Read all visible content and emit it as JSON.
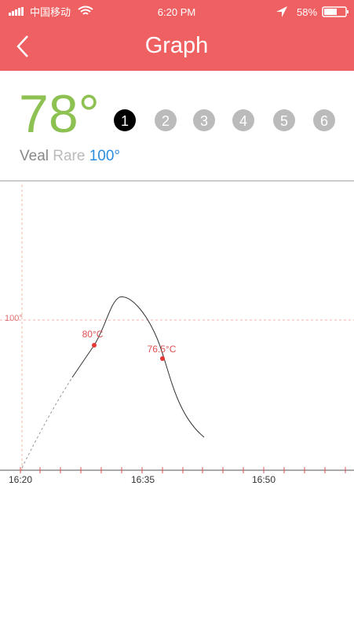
{
  "status_bar": {
    "carrier": "中国移动",
    "time": "6:20 PM",
    "battery": "58%"
  },
  "header": {
    "title": "Graph"
  },
  "reading": {
    "temperature": "78°",
    "probes": [
      "1",
      "2",
      "3",
      "4",
      "5",
      "6"
    ],
    "meat": "Veal",
    "doneness": "Rare",
    "target": "100°"
  },
  "graph": {
    "reference_label": "100°",
    "markers": [
      "80°C",
      "76.5°C"
    ],
    "x_labels": [
      "16:20",
      "16:35",
      "16:50"
    ]
  }
}
